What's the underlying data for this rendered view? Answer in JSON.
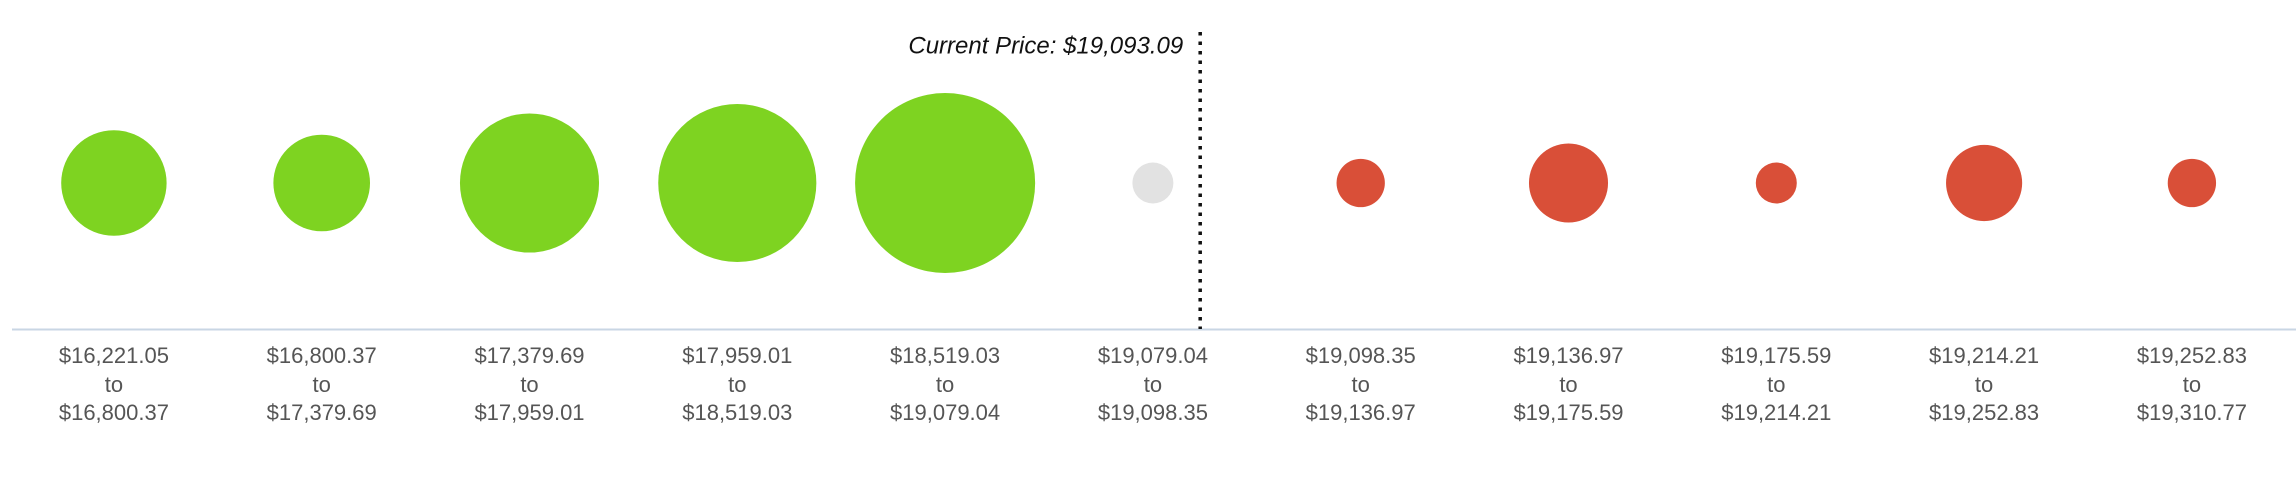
{
  "chart_data": {
    "type": "bubble",
    "categories": [
      [
        "$16,221.05",
        "to",
        "$16,800.37"
      ],
      [
        "$16,800.37",
        "to",
        "$17,379.69"
      ],
      [
        "$17,379.69",
        "to",
        "$17,959.01"
      ],
      [
        "$17,959.01",
        "to",
        "$18,519.03"
      ],
      [
        "$18,519.03",
        "to",
        "$19,079.04"
      ],
      [
        "$19,079.04",
        "to",
        "$19,098.35"
      ],
      [
        "$19,098.35",
        "to",
        "$19,136.97"
      ],
      [
        "$19,136.97",
        "to",
        "$19,175.59"
      ],
      [
        "$19,175.59",
        "to",
        "$19,214.21"
      ],
      [
        "$19,214.21",
        "to",
        "$19,252.83"
      ],
      [
        "$19,252.83",
        "to",
        "$19,310.77"
      ]
    ],
    "values": [
      72,
      66,
      95,
      108,
      123,
      28,
      33,
      54,
      28,
      52,
      33
    ],
    "colors": [
      "#7ed321",
      "#7ed321",
      "#7ed321",
      "#7ed321",
      "#7ed321",
      "#e2e2e2",
      "#d94f38",
      "#d94f38",
      "#d94f38",
      "#d94f38",
      "#d94f38"
    ],
    "current_price": {
      "value": 19093.09,
      "label": "Current Price: $19,093.09"
    }
  }
}
